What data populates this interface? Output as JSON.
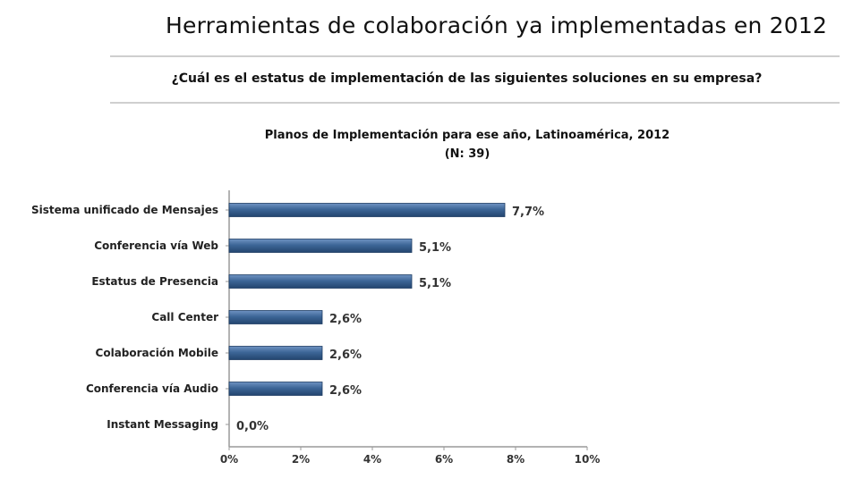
{
  "header": {
    "title": "Herramientas de colaboración ya implementadas en 2012",
    "question": "¿Cuál es el estatus de implementación de las siguientes soluciones en su empresa?"
  },
  "chart_data": {
    "type": "bar",
    "orientation": "horizontal",
    "title": "Planos de Implementación para ese año, Latinoamérica, 2012",
    "subtitle": "(N: 39)",
    "categories": [
      "Sistema unificado de Mensajes",
      "Conferencia vía Web",
      "Estatus de Presencia",
      "Call Center",
      "Colaboración Mobile",
      "Conferencia vía Audio",
      "Instant Messaging"
    ],
    "values": [
      7.7,
      5.1,
      5.1,
      2.6,
      2.6,
      2.6,
      0.0
    ],
    "value_labels": [
      "7,7%",
      "5,1%",
      "5,1%",
      "2,6%",
      "2,6%",
      "2,6%",
      "0,0%"
    ],
    "xlim": [
      0,
      10
    ],
    "xticks": [
      "0%",
      "2%",
      "4%",
      "6%",
      "8%",
      "10%"
    ],
    "grid": false,
    "bar_color": "#3d6697"
  }
}
